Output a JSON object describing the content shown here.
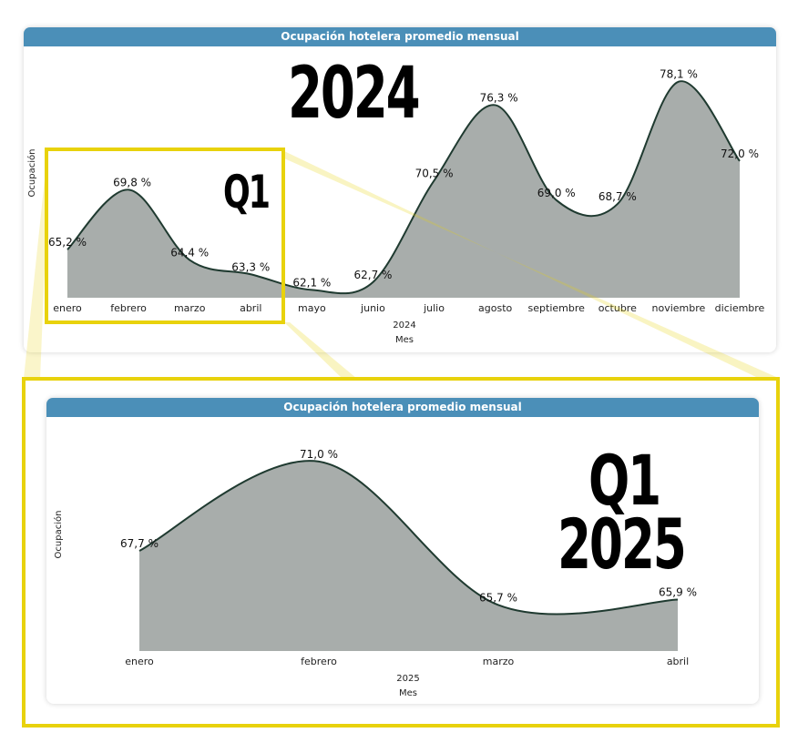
{
  "annotations": {
    "top_year": "2024",
    "top_quarter": "Q1",
    "bottom_quarter": "Q1",
    "bottom_year": "2025",
    "highlight_color": "#e8d20c"
  },
  "colors": {
    "header": "#4b8fb8",
    "area_fill": "#a8adab",
    "line": "#1f3a30"
  },
  "chart_data": [
    {
      "type": "area",
      "title": "Ocupación hotelera promedio mensual",
      "xlabel": "Mes",
      "ylabel": "Ocupación",
      "x_group_label": "2024",
      "categories": [
        "enero",
        "febrero",
        "marzo",
        "abril",
        "mayo",
        "junio",
        "julio",
        "agosto",
        "septiembre",
        "octubre",
        "noviembre",
        "diciembre"
      ],
      "values": [
        65.2,
        69.8,
        64.4,
        63.3,
        62.1,
        62.7,
        70.5,
        76.3,
        69.0,
        68.7,
        78.1,
        72.0
      ],
      "value_labels": [
        "65,2 %",
        "69,8 %",
        "64,4 %",
        "63,3 %",
        "62,1 %",
        "62,7 %",
        "70,5 %",
        "76,3 %",
        "69,0 %",
        "68,7 %",
        "78,1 %",
        "72,0 %"
      ],
      "ylim": [
        61.5,
        78.5
      ]
    },
    {
      "type": "area",
      "title": "Ocupación hotelera promedio mensual",
      "xlabel": "Mes",
      "ylabel": "Ocupación",
      "x_group_label": "2025",
      "categories": [
        "enero",
        "febrero",
        "marzo",
        "abril"
      ],
      "values": [
        67.7,
        71.0,
        65.7,
        65.9
      ],
      "value_labels": [
        "67,7 %",
        "71,0 %",
        "65,7 %",
        "65,9 %"
      ],
      "ylim": [
        64.0,
        71.4
      ]
    }
  ]
}
